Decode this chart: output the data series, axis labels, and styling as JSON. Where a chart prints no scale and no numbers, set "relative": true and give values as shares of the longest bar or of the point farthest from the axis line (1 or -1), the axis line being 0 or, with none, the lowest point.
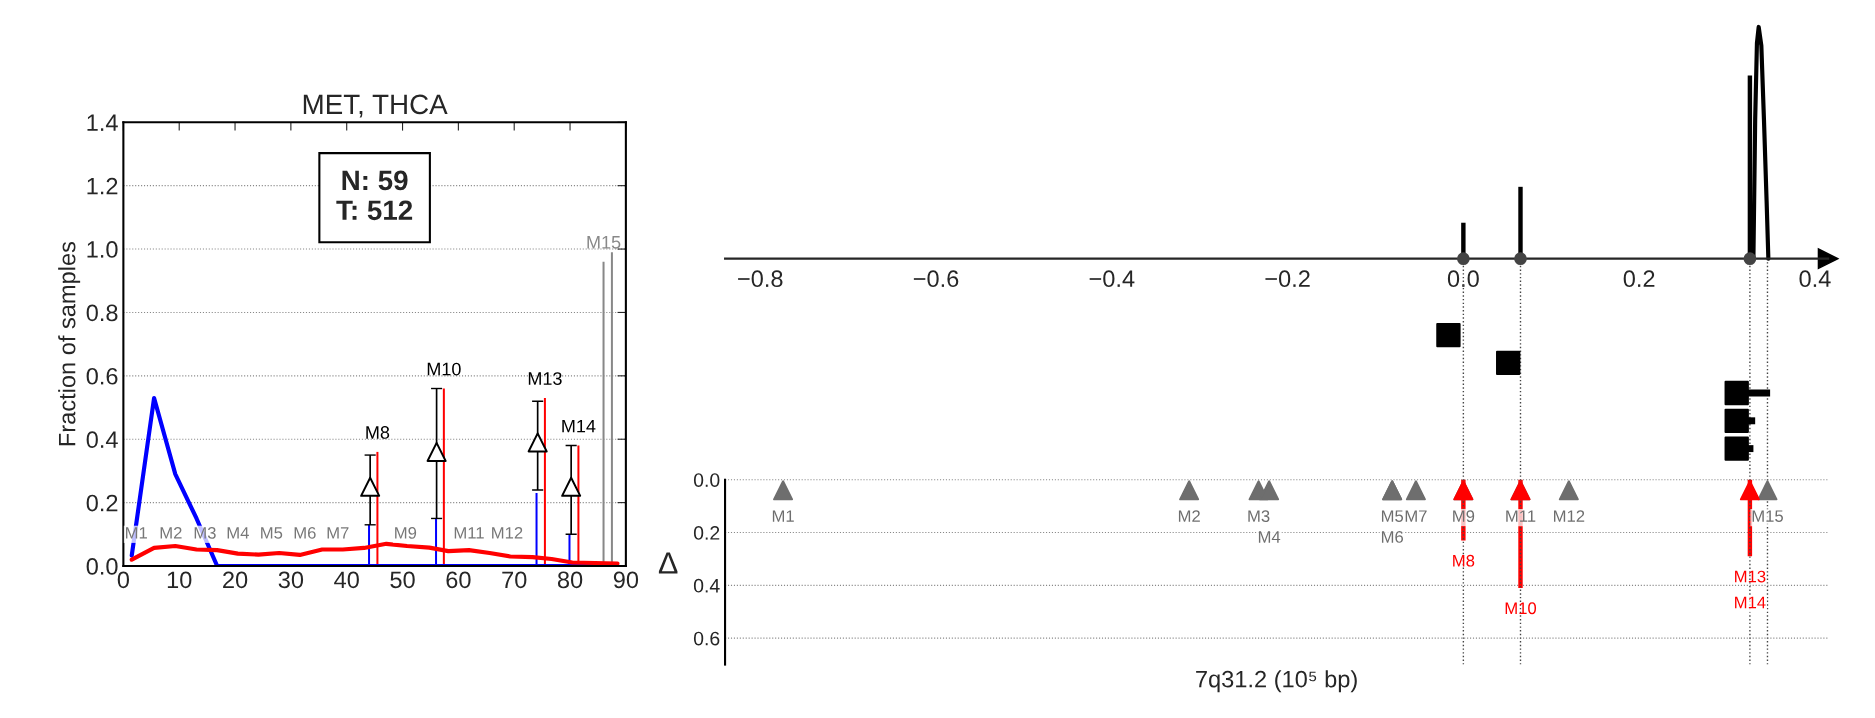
{
  "chart_data": [
    {
      "type": "line",
      "title": "MET, THCA",
      "ylabel": "Fraction of samples",
      "xlim": [
        0,
        90
      ],
      "xticks": [
        0,
        10,
        20,
        30,
        40,
        50,
        60,
        70,
        80,
        90
      ],
      "ylim": [
        0,
        1.4
      ],
      "yticks": [
        {
          "value": 0,
          "label": "0.0"
        },
        {
          "value": 0.2,
          "label": "0.2"
        },
        {
          "value": 0.4,
          "label": "0.4"
        },
        {
          "value": 0.6,
          "label": "0.6"
        },
        {
          "value": 0.8,
          "label": "0.8"
        },
        {
          "value": 1.0,
          "label": "1.0"
        },
        {
          "value": 1.2,
          "label": "1.2"
        },
        {
          "value": 1.4,
          "label": "1.4"
        }
      ],
      "grid": "y",
      "series": [
        {
          "color": "#0000ff",
          "x": [
            1.5,
            5.5,
            9.3,
            13.1,
            16.8,
            88.5
          ],
          "values": [
            0.033,
            0.53,
            0.29,
            0.15,
            0,
            0
          ]
        },
        {
          "color": "#ff0000",
          "x": [
            1.5,
            5.5,
            9.3,
            13.1,
            16.8,
            20.5,
            24.2,
            27.9,
            31.6,
            35.6,
            39.3,
            43.1,
            47.1,
            50.8,
            54.8,
            58.2,
            61.9,
            65.6,
            69.3,
            73.3,
            76.7,
            80.4,
            88.5
          ],
          "values": [
            0.02,
            0.057,
            0.063,
            0.052,
            0.05,
            0.039,
            0.036,
            0.041,
            0.035,
            0.052,
            0.052,
            0.057,
            0.07,
            0.063,
            0.058,
            0.047,
            0.05,
            0.041,
            0.03,
            0.028,
            0.022,
            0.011,
            0.008
          ]
        },
        {
          "type": "bar",
          "color": "#0000ff",
          "x": [
            44.0,
            56.0,
            74.0,
            79.9
          ],
          "values": [
            0.13,
            0.15,
            0.23,
            0.1
          ]
        },
        {
          "type": "bar",
          "color": "#ff0000",
          "x": [
            45.5,
            57.4,
            75.5,
            81.5
          ],
          "values": [
            0.36,
            0.56,
            0.53,
            0.38
          ],
          "value_labels": [
            "M8",
            "M10",
            "M13",
            "M14"
          ]
        },
        {
          "type": "bar",
          "color": "#888888",
          "x": [
            86.0,
            87.5
          ],
          "values": [
            0.96,
            0.99
          ],
          "value_labels": [
            "M15",
            null
          ]
        },
        {
          "type": "scatter",
          "color": "#000000",
          "marker": "triangle",
          "x": [
            44.2,
            56.1,
            74.2,
            80.2
          ],
          "values": [
            0.25,
            0.36,
            0.39,
            0.25
          ],
          "errors": [
            [
              0.13,
              0.35
            ],
            [
              0.15,
              0.56
            ],
            [
              0.24,
              0.52
            ],
            [
              0.1,
              0.38
            ]
          ]
        }
      ],
      "annotations": [
        "N: 59\nT: 512",
        {
          "text": "M1",
          "x": 2.3,
          "y": 0.1
        },
        {
          "text": "M2",
          "x": 8.5,
          "y": 0.1
        },
        {
          "text": "M3",
          "x": 14.6,
          "y": 0.1
        },
        {
          "text": "M4",
          "x": 20.5,
          "y": 0.1
        },
        {
          "text": "M5",
          "x": 26.5,
          "y": 0.1
        },
        {
          "text": "M6",
          "x": 32.5,
          "y": 0.1
        },
        {
          "text": "M7",
          "x": 38.4,
          "y": 0.1
        },
        {
          "text": "M9",
          "x": 50.5,
          "y": 0.1
        },
        {
          "text": "M11",
          "x": 61.9,
          "y": 0.1
        },
        {
          "text": "M12",
          "x": 68.7,
          "y": 0.1
        }
      ]
    },
    {
      "type": "line",
      "relative": true,
      "xlim": [
        -0.84,
        0.415
      ],
      "xticks": [
        {
          "value": -0.8,
          "label": "−0.8"
        },
        {
          "value": -0.6,
          "label": "−0.6"
        },
        {
          "value": -0.4,
          "label": "−0.4"
        },
        {
          "value": -0.2,
          "label": "−0.2"
        },
        {
          "value": 0,
          "label": "0.0"
        },
        {
          "value": 0.2,
          "label": "0.2"
        },
        {
          "value": 0.4,
          "label": "0.4"
        }
      ],
      "series": [
        {
          "color": "#000000",
          "x": [
            0.33,
            0.332,
            0.334,
            0.336,
            0.339,
            0.342,
            0.345,
            0.347
          ],
          "values": [
            0,
            0.6,
            0.93,
            1.0,
            0.92,
            0.6,
            0.25,
            0
          ]
        },
        {
          "type": "bar",
          "color": "#000000",
          "x": [
            0.0,
            0.065,
            0.326
          ],
          "values": [
            0.155,
            0.31,
            0.79
          ]
        },
        {
          "type": "scatter",
          "color": "#444444",
          "marker": "circle",
          "x": [
            0.0,
            0.065,
            0.326
          ],
          "values": [
            0,
            0,
            0
          ]
        },
        {
          "type": "scatter",
          "color": "#000000",
          "marker": "square",
          "x": [
            -0.017,
            0.051,
            0.311,
            0.311,
            0.311
          ],
          "values": [
            -0.33,
            -0.45,
            -0.58,
            -0.7,
            -0.82
          ],
          "xerrors": [
            null,
            null,
            [
              0.311,
              0.349
            ],
            [
              0.311,
              0.332
            ],
            [
              0.311,
              0.33
            ]
          ]
        }
      ],
      "ref_lines": [
        {
          "axis": "x",
          "value": 0.0,
          "line_style": "dotted"
        },
        {
          "axis": "x",
          "value": 0.065,
          "line_style": "dotted"
        },
        {
          "axis": "x",
          "value": 0.326,
          "line_style": "dotted"
        },
        {
          "axis": "x",
          "value": 0.346,
          "line_style": "dotted"
        }
      ]
    },
    {
      "type": "scatter",
      "xlabel": "7q31.2 (10⁵ bp)",
      "ylabel": "Δ",
      "tick_labels": "y",
      "grid": "y",
      "xlim": [
        -0.84,
        0.415
      ],
      "ylim": [
        0.7,
        -0.05
      ],
      "yticks": [
        {
          "value": 0,
          "label": "0.0"
        },
        {
          "value": 0.2,
          "label": "0.2"
        },
        {
          "value": 0.4,
          "label": "0.4"
        },
        {
          "value": 0.6,
          "label": "0.6"
        }
      ],
      "series": [
        {
          "color": "#6e6e6e",
          "marker": "triangle",
          "x": [
            -0.774,
            -0.312,
            -0.233,
            -0.221,
            -0.081,
            -0.081,
            -0.054,
            0.0,
            0.065,
            0.12,
            0.346
          ],
          "values": [
            0.04,
            0.04,
            0.04,
            0.04,
            0.04,
            0.04,
            0.04,
            0.04,
            0.04,
            0.04,
            0.04
          ],
          "value_labels": [
            "M1",
            "M2",
            "M3",
            "M4",
            "M5",
            "M6",
            "M7",
            "M9",
            "M11",
            "M12",
            "M15"
          ]
        },
        {
          "type": "bar",
          "color": "#ff0000",
          "x": [
            0.0,
            0.065,
            0.326
          ],
          "values": [
            0.23,
            0.41,
            0.29
          ],
          "value_labels": [
            "M8",
            "M10",
            "M13"
          ]
        },
        {
          "color": "#ff0000",
          "marker": "triangle",
          "x": [
            0.0,
            0.065,
            0.326
          ],
          "values": [
            0.04,
            0.04,
            0.04
          ]
        }
      ],
      "annotations": [
        {
          "text": "M14",
          "x": 0.326,
          "y": 0.47
        }
      ],
      "ref_lines": [
        {
          "axis": "x",
          "value": 0.0,
          "line_style": "dotted"
        },
        {
          "axis": "x",
          "value": 0.065,
          "line_style": "dotted"
        },
        {
          "axis": "x",
          "value": 0.326,
          "line_style": "dotted"
        },
        {
          "axis": "x",
          "value": 0.346,
          "line_style": "dotted"
        }
      ]
    }
  ]
}
